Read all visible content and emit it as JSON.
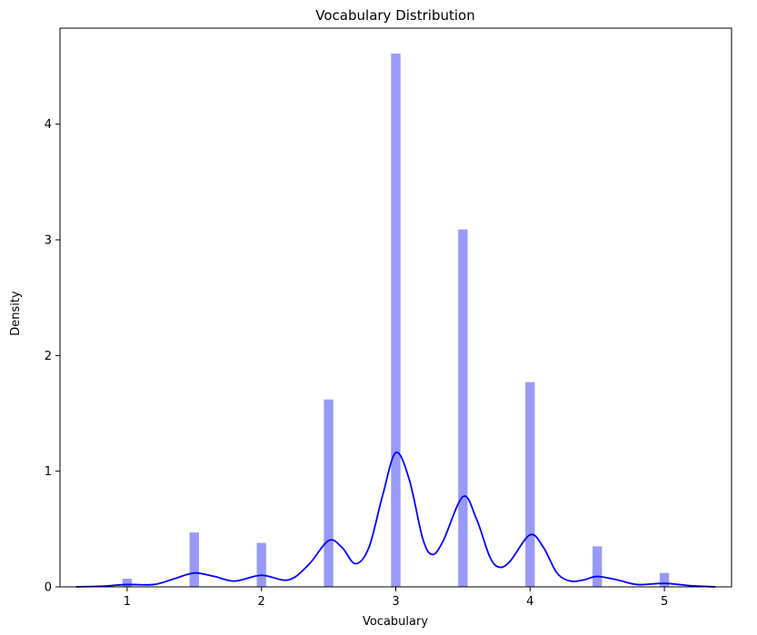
{
  "chart_data": {
    "type": "bar",
    "title": "Vocabulary Distribution",
    "xlabel": "Vocabulary",
    "ylabel": "Density",
    "xlim": [
      0.5,
      5.5
    ],
    "ylim": [
      0,
      4.83
    ],
    "xticks": [
      1,
      2,
      3,
      4,
      5
    ],
    "yticks": [
      0,
      1,
      2,
      3,
      4
    ],
    "bar_width": 0.07,
    "grid": false,
    "legend": "none",
    "histogram": {
      "name": "histogram",
      "color": "#9999f8",
      "x": [
        1.0,
        1.5,
        2.0,
        2.5,
        3.0,
        3.5,
        4.0,
        4.5,
        5.0
      ],
      "values": [
        0.07,
        0.47,
        0.38,
        1.62,
        4.61,
        3.09,
        1.77,
        0.35,
        0.12
      ]
    },
    "kde": {
      "name": "kde",
      "color": "#0000ff",
      "x": [
        0.62,
        0.8,
        1.0,
        1.2,
        1.35,
        1.5,
        1.65,
        1.8,
        2.0,
        2.2,
        2.35,
        2.5,
        2.6,
        2.7,
        2.8,
        2.9,
        3.0,
        3.1,
        3.2,
        3.27,
        3.35,
        3.5,
        3.6,
        3.7,
        3.77,
        3.85,
        4.0,
        4.1,
        4.2,
        4.3,
        4.4,
        4.5,
        4.65,
        4.8,
        5.0,
        5.2,
        5.38
      ],
      "y": [
        0.0,
        0.005,
        0.02,
        0.02,
        0.07,
        0.12,
        0.09,
        0.05,
        0.1,
        0.06,
        0.19,
        0.4,
        0.34,
        0.2,
        0.34,
        0.78,
        1.16,
        0.93,
        0.42,
        0.28,
        0.39,
        0.78,
        0.59,
        0.26,
        0.17,
        0.22,
        0.45,
        0.34,
        0.12,
        0.05,
        0.06,
        0.09,
        0.06,
        0.02,
        0.03,
        0.01,
        0.0
      ]
    }
  }
}
